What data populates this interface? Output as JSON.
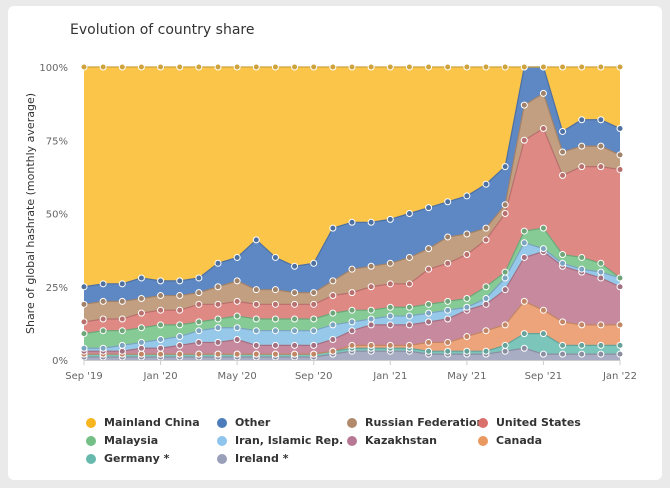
{
  "title": "Evolution of country share",
  "chart_data": {
    "type": "area",
    "stacking": "percent",
    "title": "Evolution of country share",
    "ylabel": "Share of global hashrate (monthly average)",
    "xlabel": "",
    "ylim": [
      0,
      100
    ],
    "y_ticks": [
      "0%",
      "25%",
      "50%",
      "75%",
      "100%"
    ],
    "x_tick_labels": [
      "Sep '19",
      "Jan '20",
      "May '20",
      "Sep '20",
      "Jan '21",
      "May '21",
      "Sep '21",
      "Jan '22"
    ],
    "x_tick_indices": [
      0,
      4,
      8,
      12,
      16,
      20,
      24,
      28
    ],
    "n_points": 29,
    "series": [
      {
        "name": "Ireland *",
        "color": "#a9adc4",
        "top": [
          1,
          1,
          1,
          1,
          1,
          1,
          1,
          1,
          1,
          1,
          1,
          1,
          1,
          2,
          3,
          3,
          3,
          3,
          2,
          2,
          2,
          2,
          3,
          4,
          2,
          2,
          2,
          2,
          2
        ]
      },
      {
        "name": "Germany *",
        "color": "#7cc5bb",
        "top": [
          2,
          2,
          2,
          2,
          2,
          2,
          2,
          2,
          2,
          2,
          2,
          2,
          2,
          3,
          4,
          4,
          4,
          4,
          3,
          3,
          3,
          3,
          5,
          9,
          9,
          5,
          5,
          5,
          5
        ]
      },
      {
        "name": "Canada",
        "color": "#eda47b",
        "top": [
          2,
          2,
          2,
          2,
          2,
          2,
          2,
          2,
          2,
          2,
          2,
          2,
          2,
          3,
          5,
          5,
          5,
          5,
          6,
          6,
          8,
          10,
          12,
          20,
          17,
          13,
          12,
          12,
          12
        ]
      },
      {
        "name": "Kazakhstan",
        "color": "#c7899e",
        "top": [
          3,
          3,
          3,
          4,
          4,
          5,
          6,
          6,
          7,
          5,
          5,
          5,
          5,
          7,
          10,
          12,
          12,
          12,
          13,
          14,
          17,
          19,
          24,
          35,
          37,
          32,
          30,
          28,
          25
        ]
      },
      {
        "name": "Iran, Islamic Rep.",
        "color": "#96c8ea",
        "top": [
          4,
          4,
          5,
          6,
          7,
          8,
          10,
          11,
          11,
          10,
          10,
          10,
          10,
          12,
          13,
          14,
          15,
          15,
          16,
          17,
          18,
          21,
          28,
          40,
          38,
          33,
          31,
          30,
          28
        ]
      },
      {
        "name": "Malaysia",
        "color": "#86cb95",
        "top": [
          9,
          10,
          10,
          11,
          12,
          12,
          13,
          14,
          15,
          14,
          14,
          14,
          14,
          16,
          17,
          17,
          18,
          18,
          19,
          20,
          21,
          25,
          30,
          44,
          45,
          36,
          35,
          33,
          28
        ]
      },
      {
        "name": "United States",
        "color": "#df8985",
        "top": [
          13,
          14,
          14,
          16,
          17,
          17,
          19,
          19,
          20,
          19,
          19,
          19,
          19,
          22,
          23,
          25,
          26,
          26,
          31,
          33,
          36,
          41,
          50,
          75,
          79,
          63,
          66,
          66,
          65
        ]
      },
      {
        "name": "Russian Federation",
        "color": "#c39f81",
        "top": [
          19,
          20,
          20,
          21,
          22,
          22,
          23,
          25,
          27,
          24,
          24,
          23,
          23,
          27,
          31,
          32,
          33,
          35,
          38,
          42,
          43,
          45,
          53,
          87,
          91,
          71,
          73,
          73,
          70
        ]
      },
      {
        "name": "Other",
        "color": "#5e88c4",
        "top": [
          25,
          26,
          26,
          28,
          27,
          27,
          28,
          33,
          35,
          41,
          35,
          32,
          33,
          45,
          47,
          47,
          48,
          50,
          52,
          54,
          56,
          60,
          66,
          100,
          100,
          78,
          82,
          82,
          79
        ]
      },
      {
        "name": "Mainland China",
        "color": "#fbc54a",
        "top": [
          100,
          100,
          100,
          100,
          100,
          100,
          100,
          100,
          100,
          100,
          100,
          100,
          100,
          100,
          100,
          100,
          100,
          100,
          100,
          100,
          100,
          100,
          100,
          100,
          100,
          100,
          100,
          100,
          100
        ]
      }
    ]
  },
  "legend": [
    {
      "label": "Mainland China",
      "color": "#f7b51f"
    },
    {
      "label": "Other",
      "color": "#4c7cb9"
    },
    {
      "label": "Russian Federation",
      "color": "#b08a6b"
    },
    {
      "label": "United States",
      "color": "#d9706c"
    },
    {
      "label": "Malaysia",
      "color": "#73bf85"
    },
    {
      "label": "Iran, Islamic Rep.",
      "color": "#8fc4ec"
    },
    {
      "label": "Kazakhstan",
      "color": "#b77893"
    },
    {
      "label": "Canada",
      "color": "#e9995f"
    },
    {
      "label": "Germany *",
      "color": "#67b9ad"
    },
    {
      "label": "Ireland *",
      "color": "#9aa0ba"
    }
  ]
}
